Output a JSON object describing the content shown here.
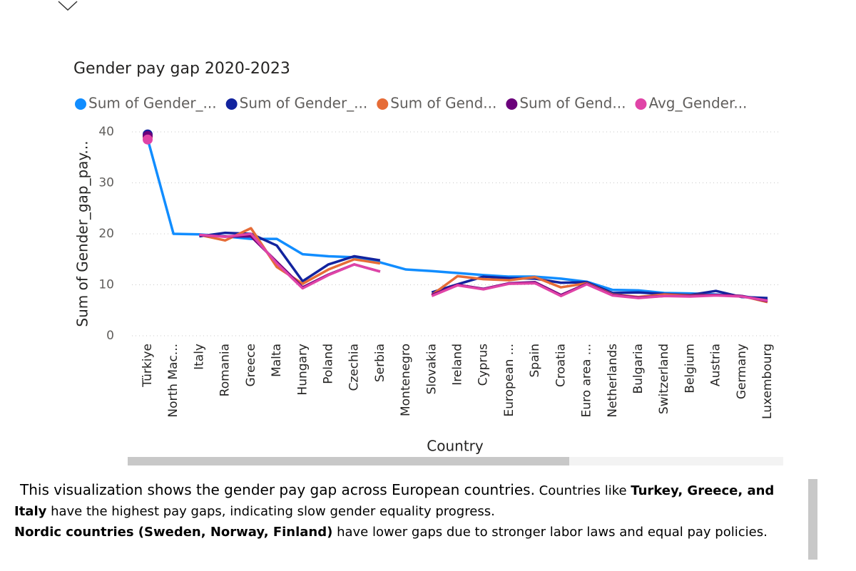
{
  "chart_data": {
    "type": "line",
    "title": "Gender pay gap 2020-2023",
    "x_label": "Country",
    "y_label": "Sum of Gender_gap_pay...",
    "categories": [
      "Türkiye",
      "North Mac...",
      "Italy",
      "Romania",
      "Greece",
      "Malta",
      "Hungary",
      "Poland",
      "Czechia",
      "Serbia",
      "Montenegro",
      "Slovakia",
      "Ireland",
      "Cyprus",
      "European ...",
      "Spain",
      "Croatia",
      "Euro area ...",
      "Netherlands",
      "Bulgaria",
      "Switzerland",
      "Belgium",
      "Austria",
      "Germany",
      "Luxembourg"
    ],
    "series": [
      {
        "name": "Sum of Gender_...",
        "color": "#118DFF",
        "values": [
          38.6,
          20.0,
          19.9,
          19.5,
          19.0,
          19.0,
          16.0,
          15.6,
          15.4,
          14.4,
          13.0,
          12.7,
          12.3,
          11.9,
          11.6,
          11.6,
          11.2,
          10.6,
          9.0,
          8.9,
          8.4,
          8.3,
          8.1,
          7.8,
          7.0
        ]
      },
      {
        "name": "Sum of Gender_...",
        "color": "#12239E",
        "values": [
          39.5,
          null,
          19.5,
          20.2,
          20.0,
          17.7,
          10.7,
          14.0,
          15.6,
          14.8,
          null,
          8.5,
          10.1,
          11.6,
          11.3,
          11.2,
          10.4,
          10.5,
          8.4,
          8.5,
          8.2,
          8.0,
          8.8,
          7.6,
          7.4
        ]
      },
      {
        "name": "Sum of Gend...",
        "color": "#E66C37",
        "values": [
          39.0,
          null,
          19.8,
          18.7,
          21.1,
          13.5,
          10.2,
          13.0,
          15.0,
          14.2,
          null,
          8.0,
          11.7,
          11.1,
          10.9,
          11.5,
          9.5,
          10.3,
          8.1,
          7.6,
          8.1,
          7.9,
          8.0,
          7.8,
          6.6
        ]
      },
      {
        "name": "Sum of Gend...",
        "color": "#6B007B",
        "values": [
          39.2,
          null,
          19.7,
          19.5,
          19.5,
          14.5,
          9.5,
          12.0,
          14.0,
          12.6,
          null,
          8.0,
          10.0,
          9.2,
          10.3,
          10.5,
          8.0,
          10.2,
          8.0,
          7.5,
          7.8,
          7.8,
          8.0,
          7.8,
          6.8
        ]
      },
      {
        "name": "Avg_Gender...",
        "color": "#E044A7",
        "values": [
          38.5,
          null,
          19.8,
          19.4,
          20.0,
          14.2,
          9.3,
          11.9,
          14.0,
          12.6,
          null,
          7.8,
          9.9,
          9.1,
          10.2,
          10.3,
          7.8,
          10.1,
          7.9,
          7.4,
          7.8,
          7.7,
          7.9,
          7.7,
          6.9
        ]
      }
    ],
    "ylim": [
      0,
      40
    ],
    "yticks": [
      0,
      10,
      20,
      30,
      40
    ],
    "grid": true,
    "legend": "top"
  },
  "description": {
    "line1": "This visualization shows the gender pay gap across European countries.",
    "line1b": "Countries like",
    "bold1": "Turkey, Greece, and Italy",
    "text1": "have the highest pay gaps, indicating slow gender equality progress.",
    "bold2": "Nordic countries (Sweden, Norway, Finland)",
    "text2": "have lower gaps due to stronger labor laws and equal pay policies."
  }
}
